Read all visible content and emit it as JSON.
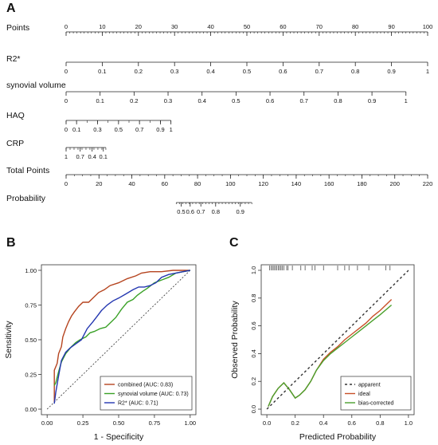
{
  "panels": {
    "a": "A",
    "b": "B",
    "c": "C"
  },
  "chart_data": [
    {
      "type": "nomogram",
      "rows": [
        {
          "label": "Points",
          "ticks": [
            {
              "v": 0,
              "l": "0"
            },
            {
              "v": 10,
              "l": "10"
            },
            {
              "v": 20,
              "l": "20"
            },
            {
              "v": 30,
              "l": "30"
            },
            {
              "v": 40,
              "l": "40"
            },
            {
              "v": 50,
              "l": "50"
            },
            {
              "v": 60,
              "l": "60"
            },
            {
              "v": 70,
              "l": "70"
            },
            {
              "v": 80,
              "l": "80"
            },
            {
              "v": 90,
              "l": "90"
            },
            {
              "v": 100,
              "l": "100"
            }
          ],
          "start": 0,
          "end": 100,
          "minor": 1
        },
        {
          "label": "R2*",
          "ticks": [
            {
              "v": 0,
              "l": "0"
            },
            {
              "v": 10,
              "l": "0.1"
            },
            {
              "v": 20,
              "l": "0.2"
            },
            {
              "v": 30,
              "l": "0.3"
            },
            {
              "v": 40,
              "l": "0.4"
            },
            {
              "v": 50,
              "l": "0.5"
            },
            {
              "v": 60,
              "l": "0.6"
            },
            {
              "v": 70,
              "l": "0.7"
            },
            {
              "v": 80,
              "l": "0.8"
            },
            {
              "v": 90,
              "l": "0.9"
            },
            {
              "v": 100,
              "l": "1"
            }
          ],
          "start": 0,
          "end": 100
        },
        {
          "label": "synovial volume",
          "ticks": [
            {
              "v": 0,
              "l": "0"
            },
            {
              "v": 9.4,
              "l": "0.1"
            },
            {
              "v": 18.8,
              "l": "0.2"
            },
            {
              "v": 28.2,
              "l": "0.3"
            },
            {
              "v": 37.6,
              "l": "0.4"
            },
            {
              "v": 47,
              "l": "0.5"
            },
            {
              "v": 56.4,
              "l": "0.6"
            },
            {
              "v": 65.8,
              "l": "0.7"
            },
            {
              "v": 75.2,
              "l": "0.8"
            },
            {
              "v": 84.6,
              "l": "0.9"
            },
            {
              "v": 94,
              "l": "1"
            }
          ],
          "start": 0,
          "end": 94
        },
        {
          "label": "HAQ",
          "ticks": [
            {
              "v": 0,
              "l": "0"
            },
            {
              "v": 2.9,
              "l": "0.1"
            },
            {
              "v": 8.7,
              "l": "0.3"
            },
            {
              "v": 14.5,
              "l": "0.5"
            },
            {
              "v": 20.3,
              "l": "0.7"
            },
            {
              "v": 26.1,
              "l": "0.9"
            },
            {
              "v": 29,
              "l": "1"
            }
          ],
          "start": 0,
          "end": 29,
          "minor_every": 2.9
        },
        {
          "label": "CRP",
          "ticks": [
            {
              "v": 0,
              "l": "1"
            },
            {
              "v": 3.9,
              "l": "0.7"
            },
            {
              "v": 7.2,
              "l": "0.4"
            },
            {
              "v": 10.3,
              "l": "0.1"
            }
          ],
          "start": 0,
          "end": 11,
          "minor_every": 1.1
        }
      ],
      "total_points": {
        "label": "Total Points",
        "ticks": [
          0,
          20,
          40,
          60,
          80,
          100,
          120,
          140,
          160,
          180,
          200,
          220
        ],
        "range": [
          0,
          220
        ]
      },
      "probability": {
        "label": "Probability",
        "ticks": [
          {
            "tp": 70,
            "l": "0.5"
          },
          {
            "tp": 75.5,
            "l": "0.6"
          },
          {
            "tp": 82,
            "l": "0.7"
          },
          {
            "tp": 91,
            "l": "0.8"
          },
          {
            "tp": 106,
            "l": "0.9"
          }
        ],
        "range_tp": [
          67,
          113
        ]
      }
    },
    {
      "type": "line",
      "xlabel": "1 - Specificity",
      "ylabel": "Sensitivity",
      "xticks": [
        0.0,
        0.25,
        0.5,
        0.75,
        1.0
      ],
      "yticks": [
        0.0,
        0.25,
        0.5,
        0.75,
        1.0
      ],
      "xlim": [
        -0.04,
        1.04
      ],
      "ylim": [
        -0.04,
        1.04
      ],
      "diagonal": true,
      "legend_position": "bottom-right",
      "series": [
        {
          "name": "combined (AUC: 0.83)",
          "color": "#b5441f",
          "x": [
            0.05,
            0.05,
            0.07,
            0.08,
            0.1,
            0.11,
            0.13,
            0.15,
            0.17,
            0.19,
            0.22,
            0.25,
            0.29,
            0.32,
            0.36,
            0.4,
            0.44,
            0.5,
            0.56,
            0.62,
            0.66,
            0.72,
            0.8,
            0.88,
            0.95,
            1.0
          ],
          "y": [
            0.05,
            0.28,
            0.33,
            0.4,
            0.45,
            0.52,
            0.58,
            0.63,
            0.67,
            0.7,
            0.74,
            0.77,
            0.77,
            0.8,
            0.84,
            0.86,
            0.89,
            0.91,
            0.94,
            0.96,
            0.98,
            0.99,
            0.99,
            1.0,
            1.0,
            1.0
          ]
        },
        {
          "name": "synovial volume (AUC: 0.73)",
          "color": "#3aa127",
          "x": [
            0.05,
            0.06,
            0.08,
            0.1,
            0.13,
            0.17,
            0.2,
            0.23,
            0.27,
            0.3,
            0.33,
            0.37,
            0.41,
            0.45,
            0.48,
            0.52,
            0.56,
            0.6,
            0.63,
            0.67,
            0.7,
            0.75,
            0.8,
            0.85,
            0.9,
            0.95,
            1.0
          ],
          "y": [
            0.17,
            0.19,
            0.27,
            0.34,
            0.4,
            0.45,
            0.48,
            0.5,
            0.52,
            0.55,
            0.56,
            0.58,
            0.59,
            0.63,
            0.66,
            0.72,
            0.77,
            0.79,
            0.82,
            0.85,
            0.87,
            0.91,
            0.93,
            0.95,
            0.98,
            0.99,
            1.0
          ]
        },
        {
          "name": "R2* (AUC: 0.71)",
          "color": "#2336b0",
          "x": [
            0.05,
            0.06,
            0.08,
            0.1,
            0.13,
            0.16,
            0.2,
            0.24,
            0.28,
            0.32,
            0.35,
            0.38,
            0.42,
            0.46,
            0.5,
            0.55,
            0.6,
            0.64,
            0.68,
            0.72,
            0.76,
            0.8,
            0.85,
            0.9,
            0.95,
            1.0
          ],
          "y": [
            0.04,
            0.12,
            0.24,
            0.35,
            0.41,
            0.44,
            0.47,
            0.5,
            0.58,
            0.63,
            0.67,
            0.71,
            0.75,
            0.78,
            0.8,
            0.83,
            0.86,
            0.88,
            0.88,
            0.89,
            0.91,
            0.95,
            0.97,
            0.98,
            0.99,
            1.0
          ]
        }
      ]
    },
    {
      "type": "line",
      "xlabel": "Predicted Probability",
      "ylabel": "Observed Probability",
      "xticks": [
        0.0,
        0.2,
        0.4,
        0.6,
        0.8,
        1.0
      ],
      "yticks": [
        0.0,
        0.2,
        0.4,
        0.6,
        0.8,
        1.0
      ],
      "xlim": [
        -0.04,
        1.04
      ],
      "ylim": [
        -0.04,
        1.04
      ],
      "legend_position": "bottom-right",
      "rug": [
        0.02,
        0.03,
        0.04,
        0.05,
        0.06,
        0.07,
        0.08,
        0.09,
        0.1,
        0.11,
        0.12,
        0.14,
        0.15,
        0.18,
        0.24,
        0.27,
        0.32,
        0.34,
        0.4,
        0.5,
        0.55,
        0.58,
        0.64,
        0.72,
        0.84,
        0.87
      ],
      "series": [
        {
          "name": "apparent",
          "color": "#333333",
          "dash": "3,3",
          "x": [
            0,
            1
          ],
          "y": [
            0,
            1
          ]
        },
        {
          "name": "ideal",
          "color": "#c85028",
          "x": [
            0.01,
            0.04,
            0.08,
            0.12,
            0.16,
            0.2,
            0.23,
            0.27,
            0.31,
            0.35,
            0.4,
            0.45,
            0.5,
            0.55,
            0.6,
            0.65,
            0.7,
            0.75,
            0.8,
            0.88
          ],
          "y": [
            0.02,
            0.09,
            0.15,
            0.19,
            0.14,
            0.08,
            0.1,
            0.14,
            0.2,
            0.28,
            0.36,
            0.41,
            0.45,
            0.5,
            0.54,
            0.58,
            0.62,
            0.67,
            0.71,
            0.79
          ]
        },
        {
          "name": "bias-corrected",
          "color": "#4aa02c",
          "x": [
            0.01,
            0.04,
            0.08,
            0.12,
            0.16,
            0.2,
            0.23,
            0.27,
            0.31,
            0.35,
            0.4,
            0.45,
            0.5,
            0.55,
            0.6,
            0.65,
            0.7,
            0.75,
            0.8,
            0.88
          ],
          "y": [
            0.02,
            0.09,
            0.15,
            0.19,
            0.14,
            0.08,
            0.1,
            0.14,
            0.2,
            0.28,
            0.35,
            0.4,
            0.44,
            0.48,
            0.52,
            0.56,
            0.6,
            0.64,
            0.68,
            0.75
          ]
        }
      ]
    }
  ]
}
